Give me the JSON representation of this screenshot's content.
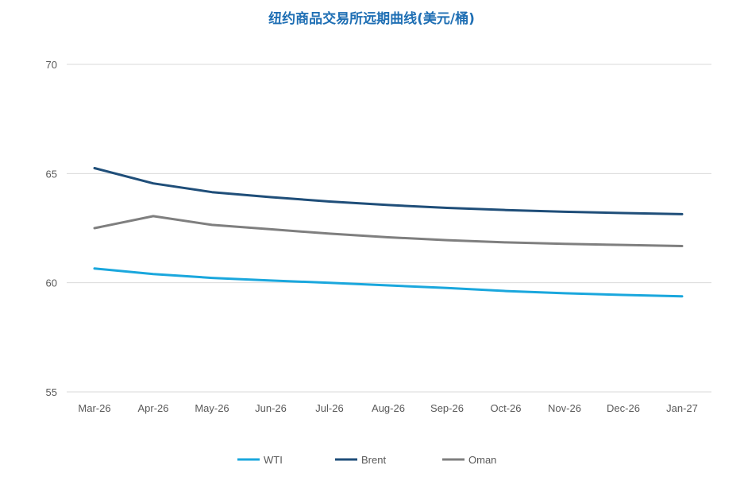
{
  "chart_data": {
    "type": "line",
    "title": "纽约商品交易所远期曲线(美元/桶)",
    "xlabel": "",
    "ylabel": "",
    "categories": [
      "Mar-26",
      "Apr-26",
      "May-26",
      "Jun-26",
      "Jul-26",
      "Aug-26",
      "Sep-26",
      "Oct-26",
      "Nov-26",
      "Dec-26",
      "Jan-27"
    ],
    "ylim": [
      55,
      70
    ],
    "yticks": [
      55,
      60,
      65,
      70
    ],
    "grid": true,
    "legend_position": "bottom",
    "series": [
      {
        "name": "WTI",
        "color": "#1aa7dd",
        "values": [
          60.65,
          60.4,
          60.22,
          60.1,
          60.0,
          59.88,
          59.76,
          59.62,
          59.52,
          59.44,
          59.38
        ]
      },
      {
        "name": "Brent",
        "color": "#1f4e79",
        "values": [
          65.25,
          64.55,
          64.15,
          63.92,
          63.72,
          63.56,
          63.43,
          63.33,
          63.25,
          63.19,
          63.14
        ]
      },
      {
        "name": "Oman",
        "color": "#7f7f7f",
        "values": [
          62.5,
          63.05,
          62.65,
          62.45,
          62.25,
          62.08,
          61.95,
          61.85,
          61.78,
          61.73,
          61.68
        ]
      }
    ]
  }
}
